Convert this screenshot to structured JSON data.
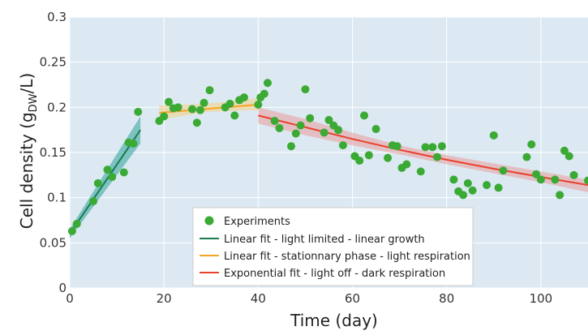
{
  "chart_data": {
    "type": "scatter",
    "xlabel": "Time (day)",
    "ylabel": {
      "main": "Cell density (g",
      "subscript": "DW",
      "suffix": "/L)"
    },
    "xlim": [
      0,
      110
    ],
    "ylim": [
      0,
      0.3
    ],
    "x_ticks": [
      0,
      20,
      40,
      60,
      80,
      100
    ],
    "y_ticks": [
      0,
      0.05,
      0.1,
      0.15,
      0.2,
      0.25,
      0.3
    ],
    "x_tick_labels": [
      "0",
      "20",
      "40",
      "60",
      "80",
      "100"
    ],
    "y_tick_labels": [
      "0",
      "0.05",
      "0.1",
      "0.15",
      "0.2",
      "0.25",
      "0.3"
    ],
    "grid": true,
    "background": "#dce9f2",
    "legend_placement": "bottom-center",
    "series": [
      {
        "name": "Experiments",
        "kind": "scatter",
        "color": "#3aaa35",
        "points": [
          [
            0.5,
            0.063
          ],
          [
            1.5,
            0.071
          ],
          [
            5,
            0.096
          ],
          [
            6,
            0.116
          ],
          [
            8,
            0.131
          ],
          [
            9,
            0.123
          ],
          [
            11.5,
            0.128
          ],
          [
            12.5,
            0.161
          ],
          [
            13.5,
            0.16
          ],
          [
            14.5,
            0.195
          ],
          [
            19,
            0.185
          ],
          [
            20,
            0.19
          ],
          [
            21,
            0.206
          ],
          [
            22,
            0.199
          ],
          [
            23,
            0.2
          ],
          [
            26,
            0.198
          ],
          [
            27,
            0.183
          ],
          [
            27.7,
            0.197
          ],
          [
            28.5,
            0.205
          ],
          [
            29.7,
            0.219
          ],
          [
            33,
            0.2
          ],
          [
            34,
            0.204
          ],
          [
            35,
            0.191
          ],
          [
            36,
            0.208
          ],
          [
            37,
            0.211
          ],
          [
            40,
            0.203
          ],
          [
            40.5,
            0.211
          ],
          [
            41.3,
            0.215
          ],
          [
            42,
            0.227
          ],
          [
            43.5,
            0.185
          ],
          [
            44.5,
            0.177
          ],
          [
            47,
            0.157
          ],
          [
            48,
            0.171
          ],
          [
            49,
            0.18
          ],
          [
            50,
            0.22
          ],
          [
            51,
            0.188
          ],
          [
            54,
            0.172
          ],
          [
            55,
            0.186
          ],
          [
            56,
            0.18
          ],
          [
            57,
            0.175
          ],
          [
            58,
            0.158
          ],
          [
            60.5,
            0.146
          ],
          [
            61.5,
            0.141
          ],
          [
            62.5,
            0.191
          ],
          [
            63.5,
            0.147
          ],
          [
            65,
            0.176
          ],
          [
            67.5,
            0.144
          ],
          [
            68.5,
            0.158
          ],
          [
            69.5,
            0.157
          ],
          [
            70.5,
            0.133
          ],
          [
            71.5,
            0.137
          ],
          [
            74.5,
            0.129
          ],
          [
            75.5,
            0.156
          ],
          [
            77,
            0.156
          ],
          [
            78,
            0.145
          ],
          [
            79,
            0.157
          ],
          [
            81.5,
            0.12
          ],
          [
            82.5,
            0.107
          ],
          [
            83.5,
            0.103
          ],
          [
            84.5,
            0.116
          ],
          [
            85.5,
            0.108
          ],
          [
            88.5,
            0.114
          ],
          [
            90,
            0.169
          ],
          [
            91,
            0.111
          ],
          [
            92,
            0.13
          ],
          [
            97,
            0.145
          ],
          [
            98,
            0.159
          ],
          [
            99,
            0.126
          ],
          [
            100,
            0.12
          ],
          [
            103,
            0.12
          ],
          [
            104,
            0.103
          ],
          [
            105,
            0.152
          ],
          [
            106,
            0.146
          ],
          [
            107,
            0.125
          ],
          [
            110,
            0.119
          ]
        ]
      },
      {
        "name": "Linear fit - light limited - linear growth",
        "kind": "line",
        "color": "#1a7a50",
        "band_color": "#3aa8a0",
        "x": [
          0,
          15
        ],
        "y": [
          0.06,
          0.175
        ],
        "band": {
          "x": [
            0,
            15
          ],
          "lower": [
            0.055,
            0.16
          ],
          "upper": [
            0.065,
            0.19
          ]
        }
      },
      {
        "name": "Linear fit - stationnary phase - light respiration",
        "kind": "line",
        "color": "#f5a623",
        "band_color": "#f2d28a",
        "x": [
          19,
          40
        ],
        "y": [
          0.194,
          0.203
        ],
        "band": {
          "x": [
            19,
            29,
            40
          ],
          "lower": [
            0.186,
            0.195,
            0.197
          ],
          "upper": [
            0.202,
            0.204,
            0.21
          ]
        }
      },
      {
        "name": "Exponential fit - light off - dark respiration",
        "kind": "line",
        "color": "#e8412c",
        "band_color": "#e8a3a3",
        "x": [
          40,
          50,
          60,
          70,
          80,
          90,
          100,
          110
        ],
        "y": [
          0.191,
          0.178,
          0.165,
          0.153,
          0.142,
          0.132,
          0.123,
          0.114
        ],
        "band": {
          "x": [
            40,
            50,
            60,
            70,
            80,
            90,
            100,
            110
          ],
          "lower": [
            0.182,
            0.169,
            0.158,
            0.148,
            0.137,
            0.127,
            0.117,
            0.106
          ],
          "upper": [
            0.2,
            0.187,
            0.172,
            0.158,
            0.147,
            0.138,
            0.129,
            0.12
          ]
        }
      }
    ]
  }
}
